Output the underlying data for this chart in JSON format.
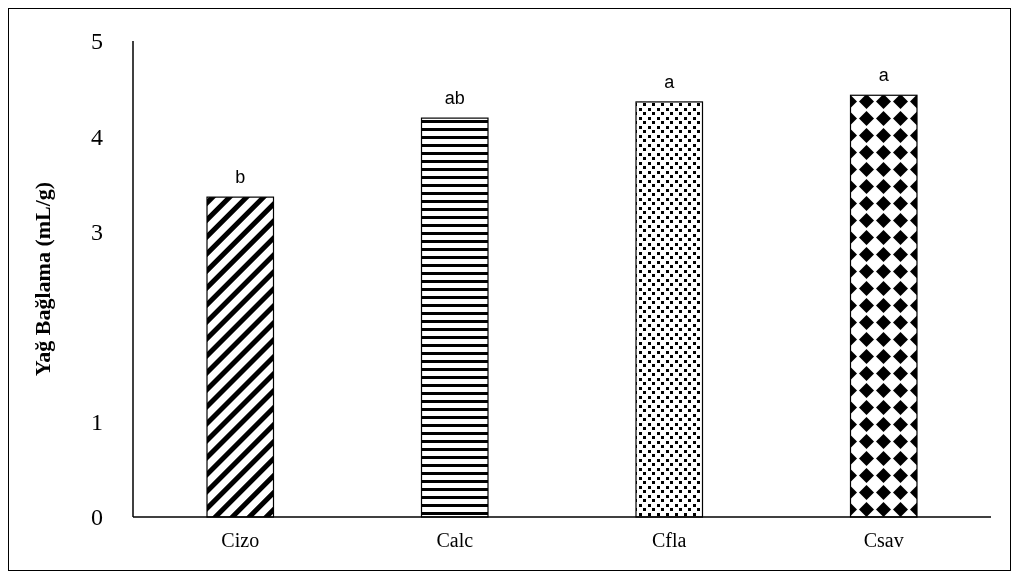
{
  "chart_data": {
    "type": "bar",
    "ylabel": "Yağ Bağlama (mL/g)",
    "categories": [
      "Cizo",
      "Calc",
      "Cfla",
      "Csav"
    ],
    "values": [
      3.36,
      4.19,
      4.36,
      4.43
    ],
    "color": "#000000",
    "ylim": [
      0,
      5
    ],
    "yticks": [
      0,
      1,
      3,
      4,
      5
    ],
    "grid": false,
    "annotations": [
      {
        "text": "b",
        "x": "Cizo",
        "y": 3.36
      },
      {
        "text": "ab",
        "x": "Calc",
        "y": 4.19
      },
      {
        "text": "a",
        "x": "Cfla",
        "y": 4.36
      },
      {
        "text": "a",
        "x": "Csav",
        "y": 4.43
      }
    ]
  }
}
